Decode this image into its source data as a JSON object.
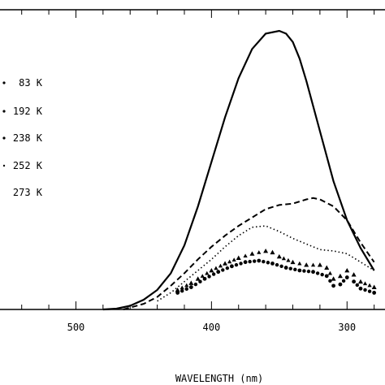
{
  "chart_data": {
    "type": "line",
    "title": "",
    "xlabel": "WAVELENGTH (nm)",
    "ylabel": "",
    "x_reversed": true,
    "xlim": [
      556,
      272
    ],
    "ylim": [
      0,
      1.0
    ],
    "xticks": [
      500,
      400,
      300
    ],
    "grid": false,
    "legend_position": "left",
    "series": [
      {
        "name": "83 K",
        "style": "solid",
        "x": [
          480,
          470,
          460,
          450,
          440,
          430,
          420,
          410,
          400,
          390,
          380,
          370,
          360,
          350,
          345,
          340,
          335,
          330,
          320,
          310,
          300,
          290,
          280
        ],
        "y": [
          0.0,
          0.003,
          0.013,
          0.035,
          0.07,
          0.13,
          0.23,
          0.37,
          0.53,
          0.69,
          0.83,
          0.935,
          0.99,
          1.0,
          0.99,
          0.96,
          0.9,
          0.82,
          0.64,
          0.46,
          0.32,
          0.22,
          0.14
        ]
      },
      {
        "name": "192 K",
        "style": "dashed",
        "x": [
          465,
          450,
          440,
          430,
          420,
          410,
          400,
          390,
          380,
          370,
          360,
          350,
          340,
          330,
          325,
          320,
          310,
          300,
          290,
          280
        ],
        "y": [
          0.0,
          0.02,
          0.045,
          0.085,
          0.13,
          0.18,
          0.225,
          0.265,
          0.3,
          0.33,
          0.36,
          0.375,
          0.38,
          0.395,
          0.4,
          0.395,
          0.37,
          0.32,
          0.24,
          0.17
        ]
      },
      {
        "name": "238 K",
        "style": "dotted",
        "x": [
          440,
          430,
          420,
          410,
          400,
          390,
          380,
          370,
          360,
          350,
          340,
          330,
          320,
          310,
          300,
          290,
          280
        ],
        "y": [
          0.03,
          0.06,
          0.1,
          0.14,
          0.18,
          0.225,
          0.265,
          0.295,
          0.3,
          0.28,
          0.255,
          0.235,
          0.215,
          0.21,
          0.2,
          0.17,
          0.14
        ]
      },
      {
        "name": "252 K",
        "style": "triangles",
        "x": [
          425,
          415,
          410,
          400,
          390,
          380,
          370,
          360,
          355,
          350,
          340,
          330,
          320,
          315,
          310,
          305,
          300,
          295,
          290,
          280
        ],
        "y": [
          0.07,
          0.095,
          0.11,
          0.14,
          0.165,
          0.185,
          0.2,
          0.21,
          0.205,
          0.19,
          0.17,
          0.16,
          0.16,
          0.15,
          0.11,
          0.12,
          0.14,
          0.125,
          0.1,
          0.08
        ]
      },
      {
        "name": "273 K",
        "style": "dots",
        "x": [
          425,
          415,
          405,
          395,
          385,
          375,
          365,
          355,
          345,
          335,
          325,
          315,
          310,
          305,
          300,
          295,
          290,
          280
        ],
        "y": [
          0.06,
          0.08,
          0.11,
          0.135,
          0.155,
          0.17,
          0.175,
          0.165,
          0.15,
          0.14,
          0.135,
          0.12,
          0.085,
          0.09,
          0.115,
          0.1,
          0.075,
          0.06
        ]
      }
    ]
  }
}
